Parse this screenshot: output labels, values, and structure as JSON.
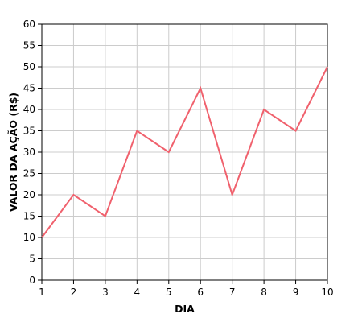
{
  "chart_data": {
    "type": "line",
    "title": "",
    "xlabel": "DIA",
    "ylabel": "VALOR DA AÇÃO (R$)",
    "x": [
      1,
      2,
      3,
      4,
      5,
      6,
      7,
      8,
      9,
      10
    ],
    "series": [
      {
        "values": [
          10,
          20,
          15,
          35,
          30,
          45,
          20,
          40,
          35,
          50
        ],
        "color": "#f0616d"
      }
    ],
    "xlim": [
      1,
      10
    ],
    "ylim": [
      0,
      60
    ],
    "xticks": [
      "1",
      "2",
      "3",
      "4",
      "5",
      "6",
      "7",
      "8",
      "9",
      "10"
    ],
    "yticks": [
      "0",
      "5",
      "10",
      "15",
      "20",
      "25",
      "30",
      "35",
      "40",
      "45",
      "50",
      "55",
      "60"
    ],
    "grid": true,
    "legend": "none"
  }
}
